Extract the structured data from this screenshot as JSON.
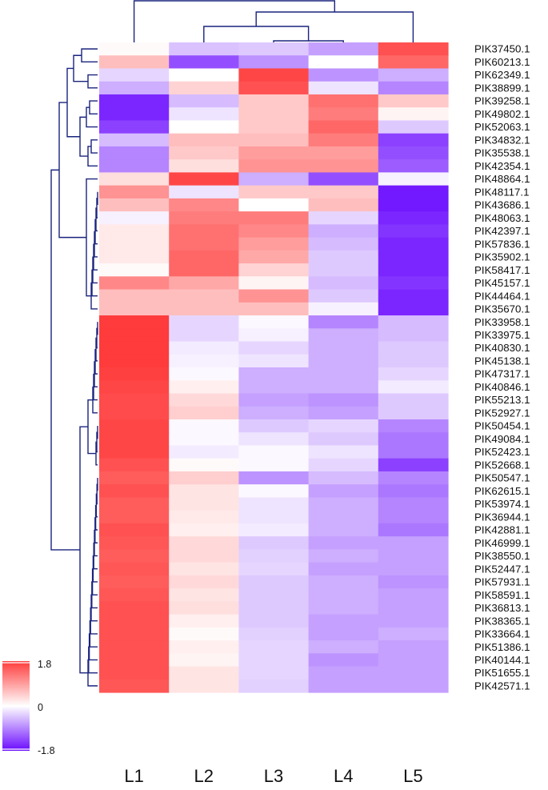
{
  "chart_data": {
    "type": "heatmap",
    "columns": [
      "L1",
      "L2",
      "L3",
      "L4",
      "L5"
    ],
    "rows": [
      "PIK37450.1",
      "PIK60213.1",
      "PIK62349.1",
      "PIK38899.1",
      "PIK39258.1",
      "PIK49802.1",
      "PIK52063.1",
      "PIK34832.1",
      "PIK35538.1",
      "PIK42354.1",
      "PIK48864.1",
      "PIK48117.1",
      "PIK43686.1",
      "PIK48063.1",
      "PIK42397.1",
      "PIK57836.1",
      "PIK35902.1",
      "PIK58417.1",
      "PIK45157.1",
      "PIK44464.1",
      "PIK35670.1",
      "PIK33958.1",
      "PIK33975.1",
      "PIK40830.1",
      "PIK45138.1",
      "PIK47317.1",
      "PIK40846.1",
      "PIK55213.1",
      "PIK52927.1",
      "PIK50454.1",
      "PIK49084.1",
      "PIK52423.1",
      "PIK52668.1",
      "PIK50547.1",
      "PIK62615.1",
      "PIK53974.1",
      "PIK36944.1",
      "PIK42881.1",
      "PIK46999.1",
      "PIK38550.1",
      "PIK52447.1",
      "PIK57931.1",
      "PIK58591.1",
      "PIK36813.1",
      "PIK38365.1",
      "PIK33664.1",
      "PIK51386.1",
      "PIK40144.1",
      "PIK51655.1",
      "PIK42571.1"
    ],
    "values": [
      [
        0.05,
        -0.45,
        -0.4,
        -0.7,
        1.6
      ],
      [
        0.6,
        -1.3,
        -0.8,
        0.0,
        1.4
      ],
      [
        -0.3,
        0.0,
        1.7,
        -0.8,
        -0.6
      ],
      [
        -0.6,
        0.4,
        1.6,
        -0.2,
        -0.9
      ],
      [
        -1.6,
        -0.5,
        0.5,
        1.3,
        0.5
      ],
      [
        -1.6,
        -0.2,
        0.5,
        1.2,
        0.1
      ],
      [
        -1.4,
        0.0,
        0.5,
        1.4,
        -0.4
      ],
      [
        -0.5,
        0.6,
        0.6,
        1.2,
        -1.4
      ],
      [
        -0.9,
        0.5,
        0.9,
        0.9,
        -1.3
      ],
      [
        -0.9,
        0.3,
        1.0,
        1.0,
        -1.2
      ],
      [
        0.3,
        1.7,
        -0.6,
        -1.3,
        -0.1
      ],
      [
        1.0,
        -0.2,
        0.5,
        0.5,
        -1.7
      ],
      [
        0.6,
        1.1,
        0.0,
        0.6,
        -1.7
      ],
      [
        -0.1,
        1.2,
        1.2,
        -0.3,
        -1.6
      ],
      [
        0.2,
        1.3,
        1.1,
        -0.6,
        -1.5
      ],
      [
        0.2,
        1.3,
        0.9,
        -0.5,
        -1.6
      ],
      [
        0.2,
        1.4,
        0.8,
        -0.4,
        -1.6
      ],
      [
        0.05,
        1.4,
        0.4,
        -0.4,
        -1.6
      ],
      [
        1.1,
        0.8,
        0.1,
        -0.5,
        -1.5
      ],
      [
        0.6,
        0.6,
        1.0,
        -0.4,
        -1.6
      ],
      [
        0.6,
        0.6,
        0.6,
        -0.1,
        -1.6
      ],
      [
        1.8,
        -0.3,
        -0.05,
        -0.9,
        -0.5
      ],
      [
        1.8,
        -0.3,
        -0.1,
        -0.6,
        -0.5
      ],
      [
        1.8,
        -0.15,
        -0.3,
        -0.6,
        -0.4
      ],
      [
        1.8,
        -0.1,
        -0.2,
        -0.6,
        -0.4
      ],
      [
        1.75,
        -0.05,
        -0.6,
        -0.6,
        -0.3
      ],
      [
        1.7,
        0.15,
        -0.6,
        -0.6,
        -0.15
      ],
      [
        1.65,
        0.35,
        -0.7,
        -0.8,
        -0.4
      ],
      [
        1.65,
        0.45,
        -0.6,
        -0.7,
        -0.4
      ],
      [
        1.7,
        -0.05,
        -0.4,
        -0.3,
        -0.9
      ],
      [
        1.7,
        -0.05,
        -0.2,
        -0.4,
        -1.0
      ],
      [
        1.7,
        -0.15,
        -0.05,
        -0.2,
        -1.0
      ],
      [
        1.6,
        0.05,
        -0.05,
        -0.3,
        -1.4
      ],
      [
        1.5,
        0.45,
        -0.8,
        -0.5,
        -0.9
      ],
      [
        1.6,
        0.25,
        -0.05,
        -0.7,
        -1.0
      ],
      [
        1.5,
        0.25,
        -0.2,
        -0.6,
        -0.9
      ],
      [
        1.5,
        0.2,
        -0.2,
        -0.6,
        -0.9
      ],
      [
        1.6,
        0.15,
        -0.15,
        -0.6,
        -1.0
      ],
      [
        1.55,
        0.35,
        -0.4,
        -0.7,
        -0.7
      ],
      [
        1.5,
        0.35,
        -0.35,
        -0.6,
        -0.7
      ],
      [
        1.55,
        0.25,
        -0.3,
        -0.7,
        -0.7
      ],
      [
        1.5,
        0.35,
        -0.4,
        -0.6,
        -0.8
      ],
      [
        1.55,
        0.25,
        -0.4,
        -0.6,
        -0.7
      ],
      [
        1.6,
        0.3,
        -0.4,
        -0.6,
        -0.7
      ],
      [
        1.6,
        0.15,
        -0.4,
        -0.7,
        -0.7
      ],
      [
        1.6,
        0.05,
        -0.35,
        -0.7,
        -0.6
      ],
      [
        1.6,
        0.15,
        -0.3,
        -0.6,
        -0.7
      ],
      [
        1.6,
        0.1,
        -0.3,
        -0.8,
        -0.7
      ],
      [
        1.6,
        0.25,
        -0.3,
        -0.7,
        -0.7
      ],
      [
        1.55,
        0.25,
        -0.35,
        -0.7,
        -0.7
      ]
    ],
    "color_scale": {
      "min": -1.8,
      "mid": 0,
      "max": 1.8,
      "low_color": "#6a0bff",
      "mid_color": "#ffffff",
      "high_color": "#ff3b3b"
    },
    "legend": {
      "max_label": "1.8",
      "mid_label": "0",
      "min_label": "-1.8",
      "position": "bottom-left"
    },
    "dendrogram_color": "#1a237e"
  }
}
